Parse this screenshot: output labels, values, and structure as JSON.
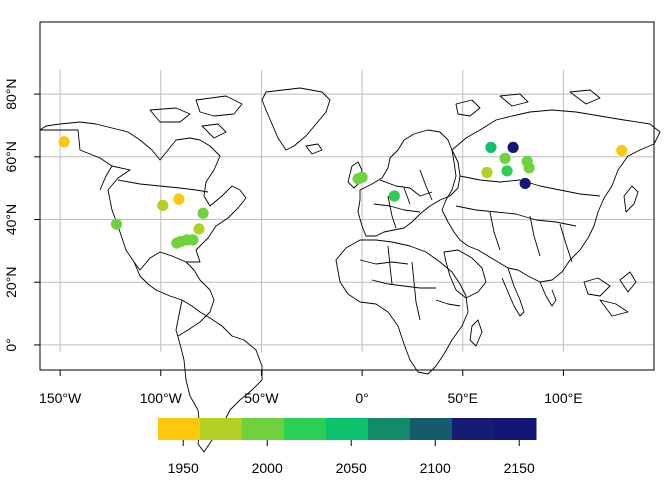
{
  "chart_data": {
    "type": "scatter",
    "subtype": "world-map-points",
    "grid": true,
    "xlim": [
      -160,
      145
    ],
    "ylim": [
      -8,
      103
    ],
    "x_ticks": [
      {
        "value": -150,
        "label": "150°W"
      },
      {
        "value": -100,
        "label": "100°W"
      },
      {
        "value": -50,
        "label": "50°W"
      },
      {
        "value": 0,
        "label": "0°"
      },
      {
        "value": 50,
        "label": "50°E"
      },
      {
        "value": 100,
        "label": "100°E"
      }
    ],
    "y_ticks": [
      {
        "value": 0,
        "label": "0°"
      },
      {
        "value": 20,
        "label": "20°N"
      },
      {
        "value": 40,
        "label": "40°N"
      },
      {
        "value": 60,
        "label": "60°N"
      },
      {
        "value": 80,
        "label": "80°N"
      }
    ],
    "colorbar": {
      "placement": "bottom",
      "range": [
        1935,
        2160
      ],
      "breaks": [
        1935,
        1960,
        1985,
        2010,
        2035,
        2060,
        2085,
        2110,
        2135,
        2160
      ],
      "colors": [
        "#FDC70C",
        "#B2D024",
        "#6FD23C",
        "#2ACF53",
        "#0AC36A",
        "#138A68",
        "#155B6E",
        "#161C73",
        "#151577"
      ],
      "tick_labels": [
        {
          "value": 1950,
          "label": "1950"
        },
        {
          "value": 2000,
          "label": "2000"
        },
        {
          "value": 2050,
          "label": "2050"
        },
        {
          "value": 2100,
          "label": "2100"
        },
        {
          "value": 2150,
          "label": "2150"
        }
      ]
    },
    "points": [
      {
        "lon": -148,
        "lat": 64.8,
        "value": 1945
      },
      {
        "lon": -122,
        "lat": 38.5,
        "value": 1995
      },
      {
        "lon": -99,
        "lat": 44.5,
        "value": 1980
      },
      {
        "lon": -91,
        "lat": 46.5,
        "value": 1955
      },
      {
        "lon": -79,
        "lat": 42.0,
        "value": 1990
      },
      {
        "lon": -81,
        "lat": 37.0,
        "value": 1980
      },
      {
        "lon": -84,
        "lat": 33.5,
        "value": 1985
      },
      {
        "lon": -87,
        "lat": 33.5,
        "value": 1985
      },
      {
        "lon": -90,
        "lat": 33.0,
        "value": 1990
      },
      {
        "lon": -92,
        "lat": 32.5,
        "value": 2000
      },
      {
        "lon": -2,
        "lat": 53.0,
        "value": 2000
      },
      {
        "lon": 0,
        "lat": 53.5,
        "value": 1990
      },
      {
        "lon": 16,
        "lat": 47.5,
        "value": 2020
      },
      {
        "lon": 62,
        "lat": 55.0,
        "value": 1970
      },
      {
        "lon": 64,
        "lat": 63.0,
        "value": 2040
      },
      {
        "lon": 71,
        "lat": 59.5,
        "value": 1995
      },
      {
        "lon": 72,
        "lat": 55.5,
        "value": 2010
      },
      {
        "lon": 75,
        "lat": 63.0,
        "value": 2150
      },
      {
        "lon": 82,
        "lat": 58.5,
        "value": 1990
      },
      {
        "lon": 83,
        "lat": 56.5,
        "value": 1995
      },
      {
        "lon": 81,
        "lat": 51.5,
        "value": 2150
      },
      {
        "lon": 129,
        "lat": 62.0,
        "value": 1940
      }
    ]
  }
}
